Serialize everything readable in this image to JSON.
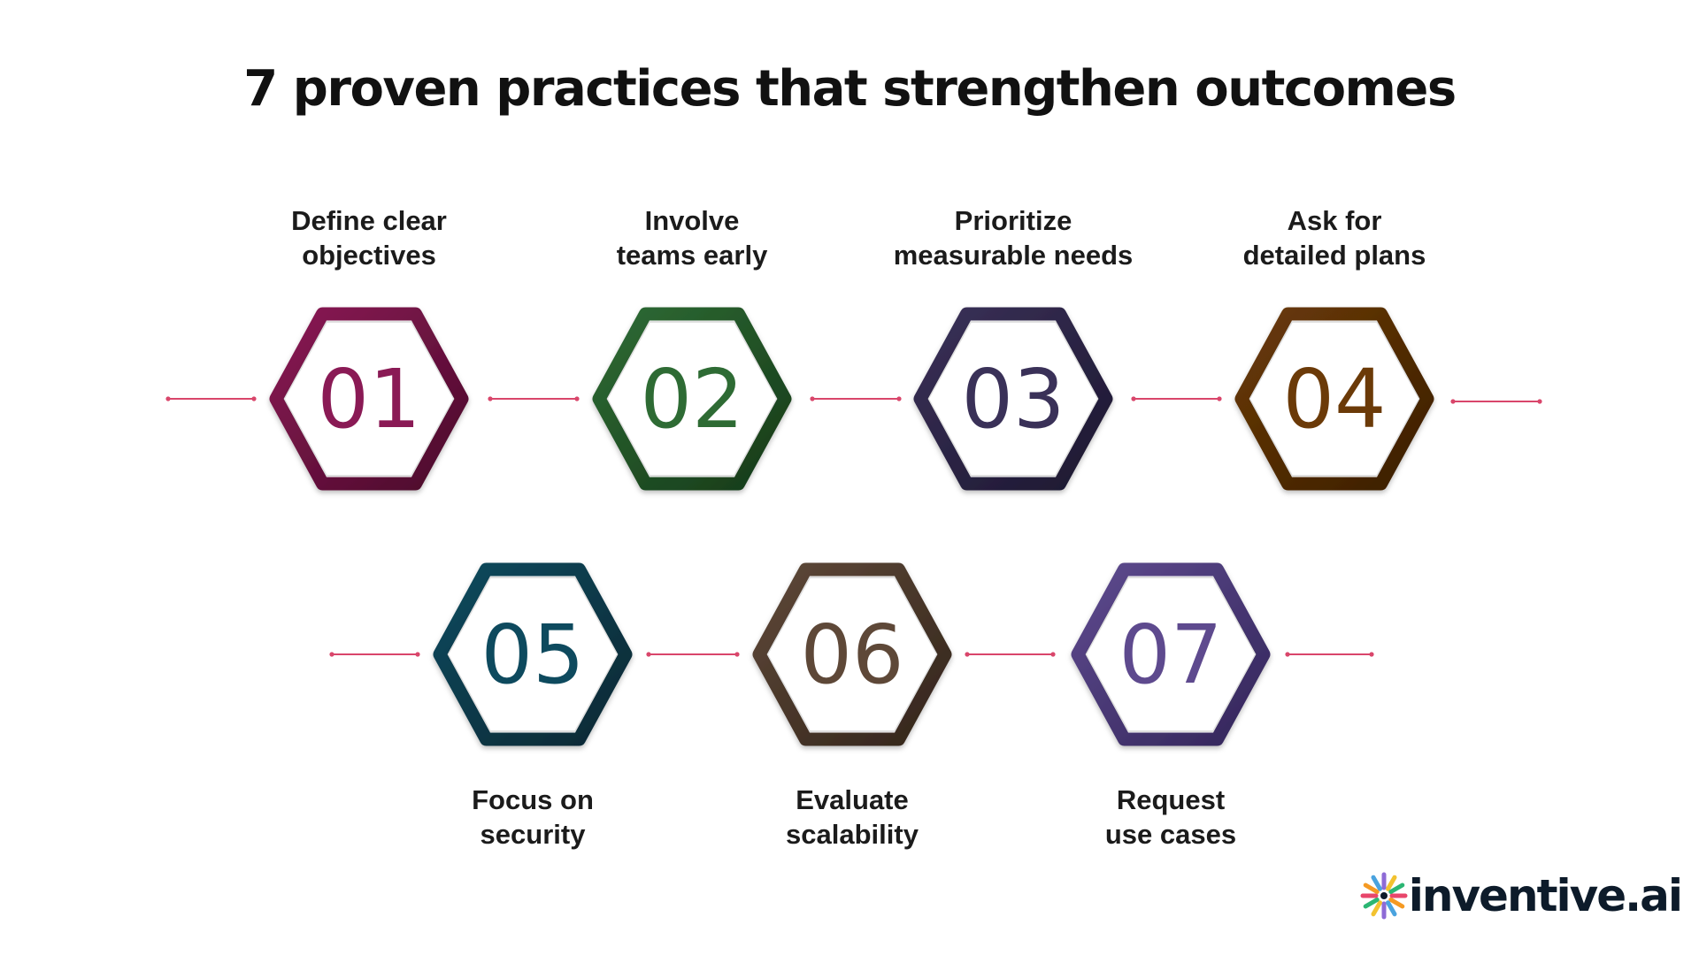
{
  "title": "7 proven practices that strengthen outcomes",
  "accent": "#d9466b",
  "steps": [
    {
      "number": "01",
      "label_lines": [
        "Define clear",
        "objectives"
      ],
      "color": "#8a1a55",
      "dark": "#4a0a2a",
      "label_position": "above"
    },
    {
      "number": "02",
      "label_lines": [
        "Involve",
        "teams early"
      ],
      "color": "#2e6b34",
      "dark": "#163a19",
      "label_position": "above"
    },
    {
      "number": "03",
      "label_lines": [
        "Prioritize",
        "measurable needs"
      ],
      "color": "#3a3158",
      "dark": "#1c1730",
      "label_position": "above"
    },
    {
      "number": "04",
      "label_lines": [
        "Ask for",
        "detailed plans"
      ],
      "color": "#6b3a08",
      "dark": "#3a1e02",
      "label_position": "above"
    },
    {
      "number": "05",
      "label_lines": [
        "Focus on",
        "security"
      ],
      "color": "#0e4a5e",
      "dark": "#062833",
      "label_position": "below"
    },
    {
      "number": "06",
      "label_lines": [
        "Evaluate",
        "scalability"
      ],
      "color": "#5e4838",
      "dark": "#33251b",
      "label_position": "below"
    },
    {
      "number": "07",
      "label_lines": [
        "Request",
        "use cases"
      ],
      "color": "#5e4a8e",
      "dark": "#33265a",
      "label_position": "below"
    }
  ],
  "logo": {
    "text": "inventive.ai",
    "colors": [
      "#e8466b",
      "#f59a23",
      "#4aa3df",
      "#8e6bd6",
      "#f2c230",
      "#2bb673"
    ]
  }
}
